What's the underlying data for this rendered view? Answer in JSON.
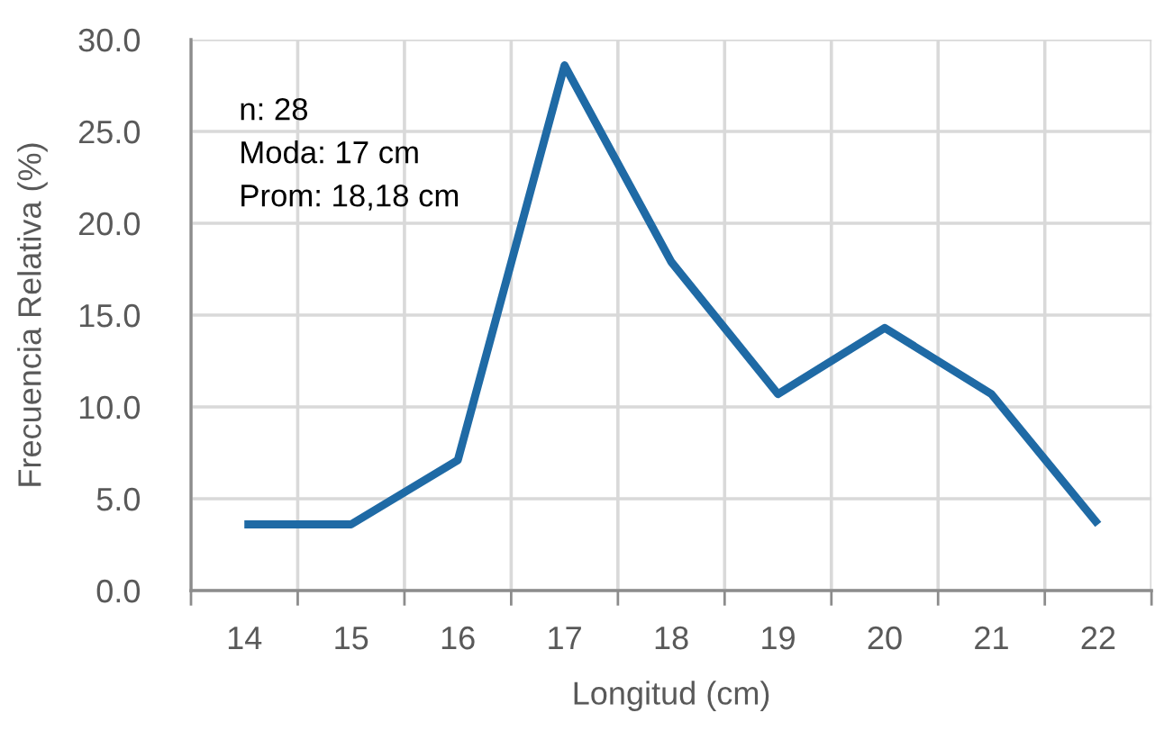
{
  "chart_data": {
    "type": "line",
    "xlabel": "Longitud (cm)",
    "ylabel": "Frecuencia Relativa (%)",
    "annotations": [
      "n: 28",
      "Moda: 17 cm",
      "Prom: 18,18 cm"
    ],
    "categories": [
      "14",
      "15",
      "16",
      "17",
      "18",
      "19",
      "20",
      "21",
      "22"
    ],
    "series": [
      {
        "color": "#1f6aa5",
        "values": [
          3.6,
          3.6,
          7.1,
          28.6,
          17.9,
          10.7,
          14.3,
          10.7,
          3.6
        ]
      }
    ],
    "ylim": [
      0,
      30
    ],
    "yticks": [
      {
        "value": 0,
        "label": "0.0"
      },
      {
        "value": 5,
        "label": "5.0"
      },
      {
        "value": 10,
        "label": "10.0"
      },
      {
        "value": 15,
        "label": "15.0"
      },
      {
        "value": 20,
        "label": "20.0"
      },
      {
        "value": 25,
        "label": "25.0"
      },
      {
        "value": 30,
        "label": "30.0"
      }
    ],
    "grid": true
  }
}
